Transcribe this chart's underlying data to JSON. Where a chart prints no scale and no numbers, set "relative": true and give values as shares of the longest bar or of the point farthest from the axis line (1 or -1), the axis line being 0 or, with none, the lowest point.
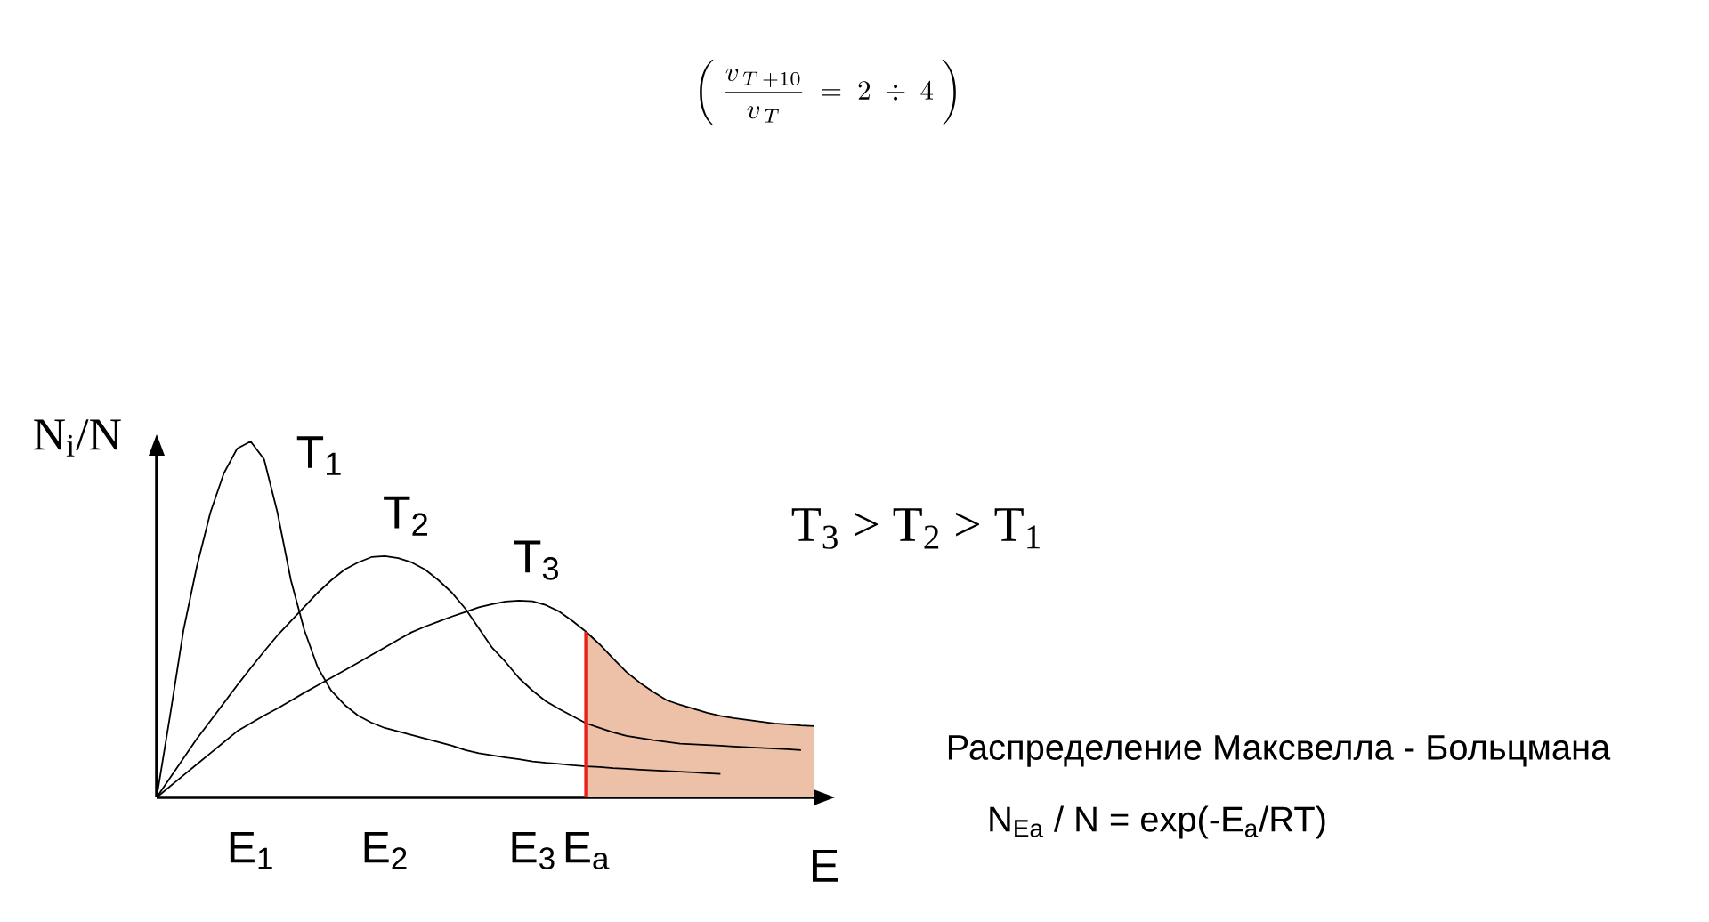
{
  "chart_data": {
    "type": "line",
    "relative": true,
    "title": "\\left(\\;\\frac{v_{\\,T\\,+10}}{v_{\\,T}} \\;=\\; 2 \\;\\div\\; 4\\;\\right)",
    "xlabel": "E",
    "ylabel": "N$_{i}$/N",
    "categories": [
      null,
      null,
      null,
      null,
      null,
      null,
      null,
      "E$_{1}$",
      null,
      null,
      null,
      null,
      null,
      null,
      null,
      null,
      null,
      "E$_{2}$",
      null,
      null,
      null,
      null,
      null,
      null,
      null,
      null,
      null,
      null,
      "E$_{3}$",
      null,
      null,
      null,
      "E$_{a}$",
      null,
      null,
      null,
      null,
      null,
      null,
      null,
      null,
      null,
      null,
      null,
      null,
      null,
      null,
      null,
      null,
      null,
      null
    ],
    "series": [
      {
        "name": "T$_{1}$",
        "color": "#000000",
        "values": [
          0,
          0.23,
          0.47,
          0.65,
          0.8,
          0.91,
          0.98,
          1.0,
          0.95,
          0.8,
          0.61,
          0.47,
          0.365,
          0.3,
          0.26,
          0.23,
          0.21,
          0.195,
          0.185,
          0.175,
          0.165,
          0.155,
          0.145,
          0.133,
          0.124,
          0.118,
          0.112,
          0.107,
          0.101,
          0.097,
          0.094,
          0.09,
          0.087,
          0.085,
          0.082,
          0.08,
          0.078,
          0.076,
          0.074,
          0.072,
          0.07,
          0.068,
          0.066,
          null,
          null,
          null,
          null,
          null,
          null,
          null,
          null
        ]
      },
      {
        "name": "T$_{2}$",
        "color": "#000000",
        "values": [
          0,
          0.055,
          0.11,
          0.165,
          0.215,
          0.265,
          0.315,
          0.363,
          0.41,
          0.455,
          0.495,
          0.535,
          0.575,
          0.61,
          0.64,
          0.66,
          0.675,
          0.678,
          0.672,
          0.66,
          0.64,
          0.61,
          0.575,
          0.53,
          0.475,
          0.42,
          0.38,
          0.335,
          0.3,
          0.27,
          0.248,
          0.228,
          0.208,
          0.195,
          0.183,
          0.173,
          0.167,
          0.161,
          0.156,
          0.151,
          0.149,
          0.147,
          0.145,
          0.143,
          0.141,
          0.139,
          0.137,
          0.135,
          0.133,
          null,
          null
        ]
      },
      {
        "name": "T$_{3}$",
        "color": "#000000",
        "values": [
          0,
          0.031,
          0.062,
          0.093,
          0.124,
          0.155,
          0.186,
          0.208,
          0.23,
          0.25,
          0.272,
          0.294,
          0.315,
          0.336,
          0.357,
          0.378,
          0.4,
          0.421,
          0.443,
          0.464,
          0.48,
          0.494,
          0.508,
          0.521,
          0.534,
          0.543,
          0.55,
          0.553,
          0.551,
          0.54,
          0.522,
          0.495,
          0.465,
          0.43,
          0.39,
          0.352,
          0.322,
          0.296,
          0.273,
          0.26,
          0.249,
          0.238,
          0.229,
          0.223,
          0.218,
          0.213,
          0.208,
          0.205,
          0.202,
          0.2,
          null
        ]
      },
      {
        "type": "area",
        "color": "#edc0a8",
        "values": [
          null,
          null,
          null,
          null,
          null,
          null,
          null,
          null,
          null,
          null,
          null,
          null,
          null,
          null,
          null,
          null,
          null,
          null,
          null,
          null,
          null,
          null,
          null,
          null,
          null,
          null,
          null,
          null,
          null,
          null,
          null,
          null,
          0.465,
          0.43,
          0.39,
          0.352,
          0.322,
          0.296,
          0.273,
          0.26,
          0.249,
          0.238,
          0.229,
          0.223,
          0.218,
          0.213,
          0.208,
          0.205,
          0.202,
          0.2,
          null
        ]
      }
    ],
    "ref_lines": [
      {
        "axis": "x",
        "value": "E$_{a}$",
        "color": "#e8201a"
      }
    ],
    "annotations": [
      "T$_{3}$ > T$_{2}$ > T$_{1}$",
      "Распределение Максвелла - Больцмана",
      "N$_{Ea}$ / N = exp(-E$_{a}$/RT)"
    ]
  }
}
